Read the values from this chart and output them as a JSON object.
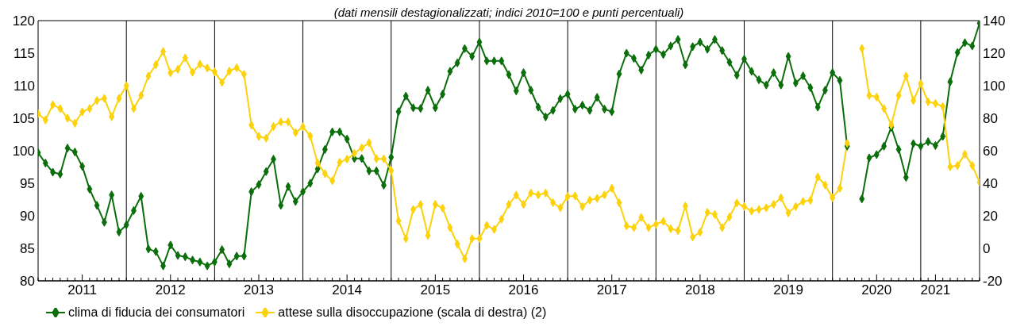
{
  "chart_data": {
    "type": "line",
    "subtitle": "(dati mensili destagionalizzati; indici 2010=100 e punti percentuali)",
    "categories": [
      null,
      null,
      null,
      null,
      null,
      null,
      "2011",
      null,
      null,
      null,
      null,
      null,
      null,
      null,
      null,
      null,
      null,
      null,
      "2012",
      null,
      null,
      null,
      null,
      null,
      null,
      null,
      null,
      null,
      null,
      null,
      "2013",
      null,
      null,
      null,
      null,
      null,
      null,
      null,
      null,
      null,
      null,
      null,
      "2014",
      null,
      null,
      null,
      null,
      null,
      null,
      null,
      null,
      null,
      null,
      null,
      "2015",
      null,
      null,
      null,
      null,
      null,
      null,
      null,
      null,
      null,
      null,
      null,
      "2016",
      null,
      null,
      null,
      null,
      null,
      null,
      null,
      null,
      null,
      null,
      null,
      "2017",
      null,
      null,
      null,
      null,
      null,
      null,
      null,
      null,
      null,
      null,
      null,
      "2018",
      null,
      null,
      null,
      null,
      null,
      null,
      null,
      null,
      null,
      null,
      null,
      "2019",
      null,
      null,
      null,
      null,
      null,
      null,
      null,
      null,
      null,
      null,
      null,
      "2020",
      null,
      null,
      null,
      null,
      null,
      null,
      null,
      "2021",
      null,
      null,
      null,
      null,
      null,
      null
    ],
    "series": [
      {
        "name": "clima di fiducia dei consumatori",
        "color": "#0a6e0a",
        "values": [
          99.7,
          98.1,
          96.7,
          96.4,
          100.4,
          99.8,
          97.6,
          94.1,
          91.6,
          89.0,
          93.2,
          87.5,
          88.6,
          90.8,
          93.0,
          84.9,
          84.5,
          82.3,
          85.5,
          83.9,
          83.7,
          83.2,
          82.9,
          82.3,
          82.9,
          84.8,
          82.6,
          83.8,
          83.8,
          93.7,
          94.8,
          96.8,
          98.7,
          91.6,
          94.5,
          92.2,
          93.7,
          95.0,
          97.2,
          100.2,
          102.9,
          102.9,
          101.8,
          98.8,
          98.8,
          96.9,
          96.9,
          94.7,
          99.0,
          106.0,
          108.4,
          106.6,
          106.5,
          109.3,
          106.6,
          108.7,
          112.2,
          113.5,
          115.7,
          114.5,
          116.7,
          113.8,
          113.8,
          113.8,
          111.7,
          109.2,
          112.0,
          109.3,
          106.7,
          105.2,
          106.2,
          108.0,
          108.7,
          106.4,
          107.0,
          106.2,
          108.2,
          106.4,
          106.0,
          111.8,
          115.0,
          114.2,
          112.4,
          114.7,
          115.6,
          114.8,
          116.1,
          117.1,
          113.2,
          116.0,
          116.7,
          115.6,
          117.1,
          115.4,
          113.6,
          111.6,
          114.1,
          112.2,
          110.9,
          110.1,
          112.0,
          110.1,
          114.5,
          110.4,
          111.5,
          109.7,
          106.7,
          109.3,
          112.0,
          110.8,
          100.7,
          null,
          92.6,
          98.9,
          99.4,
          100.7,
          103.6,
          100.2,
          95.9,
          101.1,
          100.7,
          101.4,
          100.8,
          102.2,
          110.6,
          115.1,
          116.6,
          116.1,
          119.6
        ]
      },
      {
        "name": "attese sulla disoccupazione (scala di destra) (2)",
        "color": "#fcd20a",
        "axis": "y2",
        "values": [
          82.8,
          78.9,
          88.3,
          85.9,
          80.0,
          76.9,
          83.9,
          85.9,
          90.9,
          92.2,
          80.9,
          92.2,
          100.0,
          85.9,
          94.0,
          105.9,
          112.9,
          121.0,
          107.9,
          110.1,
          117.1,
          108.2,
          113.2,
          110.8,
          108.5,
          102.0,
          109.0,
          111.0,
          107.0,
          75.8,
          68.8,
          67.7,
          74.9,
          77.7,
          77.7,
          71.1,
          74.7,
          69.0,
          52.4,
          45.9,
          41.5,
          52.9,
          54.8,
          58.4,
          61.8,
          64.9,
          55.0,
          55.0,
          47.8,
          16.9,
          6.0,
          23.9,
          27.0,
          7.9,
          27.0,
          24.7,
          12.7,
          2.6,
          -6.4,
          6.0,
          6.0,
          14.1,
          11.6,
          17.9,
          27.0,
          32.7,
          27.0,
          34.0,
          32.8,
          34.0,
          28.1,
          24.9,
          31.9,
          32.2,
          25.7,
          29.7,
          30.7,
          32.8,
          36.9,
          28.0,
          13.8,
          12.7,
          19.0,
          12.7,
          14.8,
          16.6,
          12.0,
          10.9,
          26.0,
          6.9,
          9.9,
          22.1,
          20.8,
          12.7,
          19.3,
          27.9,
          25.7,
          22.9,
          23.9,
          24.9,
          27.0,
          31.1,
          21.8,
          25.7,
          28.8,
          29.5,
          43.9,
          38.9,
          31.1,
          36.9,
          64.6,
          null,
          122.9,
          94.0,
          93.0,
          85.9,
          75.8,
          94.0,
          105.9,
          90.9,
          101.2,
          90.1,
          89.1,
          87.2,
          50.1,
          50.9,
          57.9,
          50.9,
          40.6
        ]
      }
    ],
    "ylim": [
      80,
      120
    ],
    "yticks": [
      80,
      85,
      90,
      95,
      100,
      105,
      110,
      115,
      120
    ],
    "y2lim": [
      -20,
      140
    ],
    "y2ticks": [
      -20,
      0,
      20,
      40,
      60,
      80,
      100,
      120,
      140
    ],
    "grid": true,
    "legend": "bottom left",
    "marker": "diamond",
    "line_style": "solid"
  }
}
